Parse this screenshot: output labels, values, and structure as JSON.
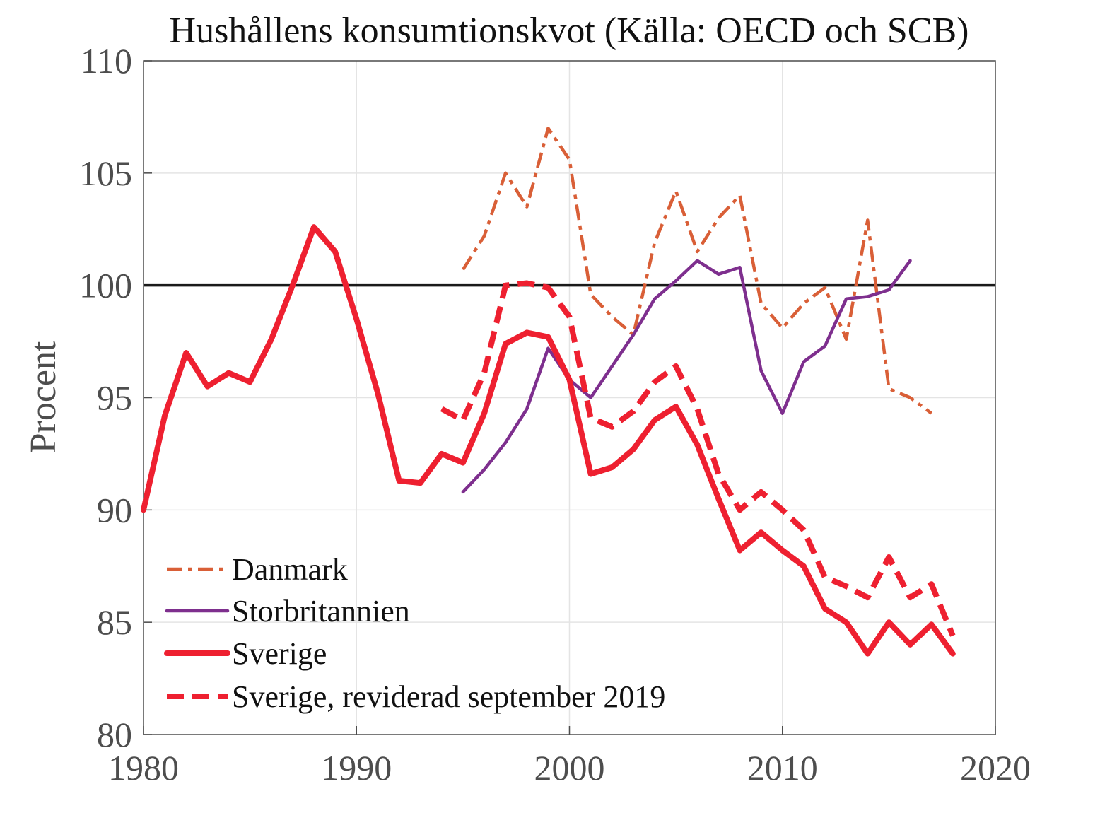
{
  "chart_data": {
    "type": "line",
    "title": "Hushållens konsumtionskvot (Källa: OECD och SCB)",
    "xlabel": "",
    "ylabel": "Procent",
    "xlim": [
      1980,
      2020
    ],
    "ylim": [
      80,
      110
    ],
    "xticks": [
      1980,
      1990,
      2000,
      2010,
      2020
    ],
    "yticks": [
      80,
      85,
      90,
      95,
      100,
      105,
      110
    ],
    "grid": true,
    "legend_position": "bottom-left",
    "reference_line": {
      "y": 100,
      "color": "#1a1a1a"
    },
    "series": [
      {
        "name": "Danmark",
        "color": "#d95f37",
        "style": "dashdot",
        "x": [
          1995,
          1996,
          1997,
          1998,
          1999,
          2000,
          2001,
          2002,
          2003,
          2004,
          2005,
          2006,
          2007,
          2008,
          2009,
          2010,
          2011,
          2012,
          2013,
          2014,
          2015,
          2016,
          2017
        ],
        "y": [
          100.7,
          102.2,
          105.0,
          103.5,
          107.0,
          105.6,
          99.6,
          98.6,
          97.8,
          101.9,
          104.2,
          101.5,
          103.0,
          104.0,
          99.2,
          98.1,
          99.2,
          99.9,
          97.6,
          102.9,
          95.4,
          95.0,
          94.3
        ]
      },
      {
        "name": "Storbritannien",
        "color": "#7e2f8e",
        "style": "solid",
        "x": [
          1995,
          1996,
          1997,
          1998,
          1999,
          2000,
          2001,
          2002,
          2003,
          2004,
          2005,
          2006,
          2007,
          2008,
          2009,
          2010,
          2011,
          2012,
          2013,
          2014,
          2015,
          2016
        ],
        "y": [
          90.8,
          91.8,
          93.0,
          94.5,
          97.2,
          95.8,
          95.0,
          96.4,
          97.8,
          99.4,
          100.2,
          101.1,
          100.5,
          100.8,
          96.2,
          94.3,
          96.6,
          97.3,
          99.4,
          99.5,
          99.8,
          101.1
        ]
      },
      {
        "name": "Sverige",
        "color": "#ee2030",
        "style": "solid-thick",
        "x": [
          1980,
          1981,
          1982,
          1983,
          1984,
          1985,
          1986,
          1987,
          1988,
          1989,
          1990,
          1991,
          1992,
          1993,
          1994,
          1995,
          1996,
          1997,
          1998,
          1999,
          2000,
          2001,
          2002,
          2003,
          2004,
          2005,
          2006,
          2007,
          2008,
          2009,
          2010,
          2011,
          2012,
          2013,
          2014,
          2015,
          2016,
          2017,
          2018
        ],
        "y": [
          90.0,
          94.2,
          97.0,
          95.5,
          96.1,
          95.7,
          97.6,
          100.0,
          102.6,
          101.5,
          98.5,
          95.2,
          91.3,
          91.2,
          92.5,
          92.1,
          94.3,
          97.4,
          97.9,
          97.7,
          95.8,
          91.6,
          91.9,
          92.7,
          94.0,
          94.6,
          92.9,
          90.5,
          88.2,
          89.0,
          88.2,
          87.5,
          85.6,
          85.0,
          83.6,
          85.0,
          84.0,
          84.9,
          83.6
        ]
      },
      {
        "name": "Sverige, reviderad september 2019",
        "color": "#ee2030",
        "style": "dashed-thick",
        "x": [
          1994,
          1995,
          1996,
          1997,
          1998,
          1999,
          2000,
          2001,
          2002,
          2003,
          2004,
          2005,
          2006,
          2007,
          2008,
          2009,
          2010,
          2011,
          2012,
          2013,
          2014,
          2015,
          2016,
          2017,
          2018
        ],
        "y": [
          94.5,
          94.0,
          96.1,
          100.0,
          100.1,
          99.9,
          98.6,
          94.1,
          93.7,
          94.4,
          95.7,
          96.4,
          94.5,
          91.6,
          90.0,
          90.8,
          90.0,
          89.1,
          87.0,
          86.6,
          86.1,
          87.9,
          86.1,
          86.7,
          84.4
        ]
      }
    ]
  }
}
